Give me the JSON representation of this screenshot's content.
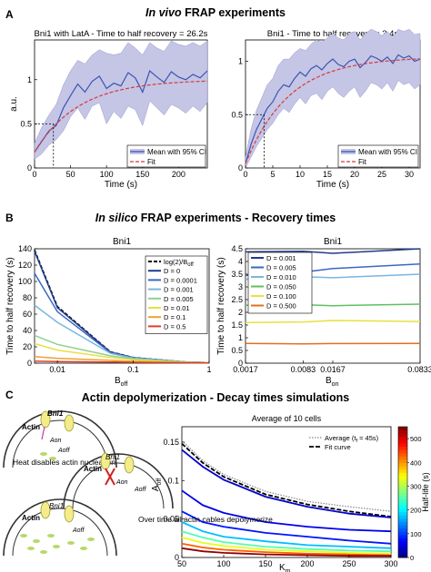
{
  "panels": {
    "A": {
      "letter": "A",
      "title_italic": "In vivo",
      "title_rest": " FRAP experiments"
    },
    "B": {
      "letter": "B",
      "title_italic": "In silico",
      "title_rest": " FRAP experiments - Recovery times"
    },
    "C": {
      "letter": "C",
      "title": "Actin depolymerization - Decay times simulations",
      "schematic": {
        "bni1": "Bni1",
        "actin": "Actin",
        "aon": "Aon",
        "aoff": "Aoff",
        "step1": "Heat disables actin nucleation",
        "step2": "Over time all actin cables depolymerize"
      }
    }
  },
  "colors": {
    "ci_fill": "#c5c5e6",
    "mean_line": "#3a55b0",
    "fit_line": "#d63a3a",
    "D_colors": [
      "#1f3a8a",
      "#3a67c4",
      "#7ab6e0",
      "#8fd08f",
      "#e8e040",
      "#f0a030",
      "#d8402a"
    ],
    "D2_colors": [
      "#1f3a8a",
      "#3a67c4",
      "#7ab6e0",
      "#5fc05f",
      "#e8e040",
      "#e07020"
    ]
  },
  "chart_data": [
    {
      "id": "A1",
      "type": "line",
      "title": "Bni1 with LatA - Time to half recovery = 26.2s",
      "xlabel": "Time (s)",
      "ylabel": "a.u.",
      "xlim": [
        0,
        240
      ],
      "ylim": [
        0,
        1.45
      ],
      "xticks": [
        0,
        50,
        100,
        150,
        200
      ],
      "yticks": [
        0,
        0.5,
        1
      ],
      "half_time": 26.2,
      "legend": [
        "Mean with 95% CI",
        "Fit"
      ],
      "series": [
        {
          "name": "Mean with 95% CI",
          "x": [
            0,
            10,
            20,
            30,
            40,
            50,
            60,
            70,
            80,
            90,
            100,
            110,
            120,
            130,
            140,
            150,
            160,
            170,
            180,
            190,
            200,
            210,
            220,
            230,
            240
          ],
          "values": [
            0.18,
            0.3,
            0.42,
            0.48,
            0.68,
            0.82,
            0.95,
            0.86,
            0.98,
            1.04,
            0.9,
            0.96,
            0.93,
            1.08,
            1.02,
            0.86,
            1.1,
            1.03,
            0.97,
            1.09,
            1.03,
            1.0,
            1.06,
            1.02,
            1.1
          ],
          "lower": [
            0.1,
            0.16,
            0.26,
            0.32,
            0.42,
            0.58,
            0.68,
            0.55,
            0.7,
            0.74,
            0.5,
            0.64,
            0.56,
            0.7,
            0.66,
            0.48,
            0.76,
            0.68,
            0.6,
            0.72,
            0.68,
            0.62,
            0.7,
            0.64,
            0.74
          ],
          "upper": [
            0.28,
            0.46,
            0.6,
            0.72,
            0.94,
            1.1,
            1.22,
            1.18,
            1.28,
            1.34,
            1.3,
            1.28,
            1.3,
            1.42,
            1.36,
            1.28,
            1.42,
            1.36,
            1.32,
            1.44,
            1.4,
            1.38,
            1.42,
            1.38,
            1.44
          ]
        },
        {
          "name": "Fit",
          "fit": "1 - 0.82*exp(-t/38)",
          "plateau": 1.0
        }
      ]
    },
    {
      "id": "A2",
      "type": "line",
      "title": "Bni1 - Time to half recovery = 3.4s",
      "xlabel": "Time (s)",
      "ylabel": "",
      "xlim": [
        0,
        32
      ],
      "ylim": [
        0,
        1.2
      ],
      "xticks": [
        0,
        5,
        10,
        15,
        20,
        25,
        30
      ],
      "yticks": [
        0,
        0.5,
        1
      ],
      "half_time": 3.4,
      "legend": [
        "Mean with 95% CI",
        "Fit"
      ],
      "series": [
        {
          "name": "Mean with 95% CI",
          "x": [
            0,
            1,
            2,
            3,
            4,
            5,
            6,
            7,
            8,
            9,
            10,
            11,
            12,
            13,
            14,
            15,
            16,
            17,
            18,
            19,
            20,
            21,
            22,
            23,
            24,
            25,
            26,
            27,
            28,
            29,
            30,
            31,
            32
          ],
          "values": [
            0.04,
            0.22,
            0.36,
            0.46,
            0.56,
            0.62,
            0.72,
            0.78,
            0.76,
            0.84,
            0.9,
            0.86,
            0.93,
            0.96,
            0.92,
            0.98,
            1.02,
            0.97,
            0.95,
            1.0,
            1.02,
            0.94,
            0.99,
            1.05,
            1.03,
            1.0,
            1.04,
            0.98,
            1.06,
            1.03,
            1.05,
            1.0,
            1.02
          ],
          "lower": [
            0.0,
            0.1,
            0.2,
            0.28,
            0.36,
            0.42,
            0.5,
            0.56,
            0.52,
            0.6,
            0.66,
            0.6,
            0.68,
            0.7,
            0.64,
            0.72,
            0.76,
            0.7,
            0.66,
            0.72,
            0.76,
            0.66,
            0.72,
            0.8,
            0.78,
            0.74,
            0.8,
            0.72,
            0.82,
            0.78,
            0.8,
            0.74,
            0.78
          ],
          "upper": [
            0.1,
            0.36,
            0.54,
            0.66,
            0.78,
            0.84,
            0.96,
            1.02,
            1.02,
            1.08,
            1.12,
            1.1,
            1.16,
            1.2,
            1.18,
            1.22,
            1.26,
            1.22,
            1.2,
            1.26,
            1.28,
            1.2,
            1.26,
            1.3,
            1.28,
            1.24,
            1.28,
            1.22,
            1.3,
            1.28,
            1.3,
            1.25,
            1.26
          ]
        },
        {
          "name": "Fit",
          "fit": "1.04 - 1.04*exp(-t/4.6)",
          "plateau": 1.04
        }
      ]
    },
    {
      "id": "B1",
      "type": "line",
      "title": "Bni1",
      "xlabel": "B_off",
      "ylabel": "Time to half recovery (s)",
      "xscale": "log",
      "xlim": [
        0.005,
        1
      ],
      "ylim": [
        0,
        140
      ],
      "xtick_labels": [
        "0.01",
        "0.1",
        "1"
      ],
      "xticks": [
        0.01,
        0.1,
        1
      ],
      "yticks": [
        0,
        20,
        40,
        60,
        80,
        100,
        120,
        140
      ],
      "x": [
        0.005,
        0.01,
        0.05,
        0.1,
        0.5,
        1
      ],
      "series": [
        {
          "name": "log(2)/B_off",
          "values": [
            138.6,
            69.3,
            13.9,
            6.9,
            1.4,
            0.7
          ]
        },
        {
          "name": "D = 0",
          "values": [
            137,
            68,
            13.6,
            6.8,
            1.4,
            0.7
          ]
        },
        {
          "name": "D = 0.0001",
          "values": [
            110,
            63,
            13,
            6.6,
            1.4,
            0.7
          ]
        },
        {
          "name": "D = 0.001",
          "values": [
            71,
            50,
            12,
            6.2,
            1.3,
            0.7
          ]
        },
        {
          "name": "D = 0.005",
          "values": [
            34,
            23,
            9,
            5.2,
            1.2,
            0.6
          ]
        },
        {
          "name": "D = 0.01",
          "values": [
            24,
            16,
            7,
            4,
            1,
            0.6
          ]
        },
        {
          "name": "D = 0.1",
          "values": [
            8,
            6,
            3.5,
            2.2,
            0.8,
            0.5
          ]
        },
        {
          "name": "D = 0.5",
          "values": [
            2.5,
            2,
            1.4,
            1,
            0.5,
            0.3
          ]
        }
      ]
    },
    {
      "id": "B2",
      "type": "line",
      "title": "Bni1",
      "xlabel": "B_on",
      "ylabel": "Time to half recovery (s)",
      "xlim": [
        0.0017,
        0.0833
      ],
      "ylim": [
        0,
        4.5
      ],
      "xtick_labels": [
        "0.0017",
        "0.0083",
        "0.0167",
        "0.0833"
      ],
      "xticks": [
        0.0017,
        0.0083,
        0.0167,
        0.0833
      ],
      "yticks": [
        0,
        0.5,
        1,
        1.5,
        2,
        2.5,
        3,
        3.5,
        4,
        4.5
      ],
      "x": [
        0.0017,
        0.0083,
        0.0167,
        0.0833
      ],
      "series": [
        {
          "name": "D = 0.001",
          "values": [
            4.38,
            4.4,
            4.32,
            4.5
          ]
        },
        {
          "name": "D = 0.005",
          "values": [
            3.45,
            3.58,
            3.72,
            3.9
          ]
        },
        {
          "name": "D = 0.010",
          "values": [
            3.3,
            3.4,
            3.36,
            3.5
          ]
        },
        {
          "name": "D = 0.050",
          "values": [
            2.28,
            2.3,
            2.26,
            2.32
          ]
        },
        {
          "name": "D = 0.100",
          "values": [
            1.6,
            1.62,
            1.68,
            1.64
          ]
        },
        {
          "name": "D = 0.500",
          "values": [
            0.78,
            0.76,
            0.77,
            0.78
          ]
        }
      ]
    },
    {
      "id": "C1",
      "type": "line",
      "title": "Average of 10 cells",
      "xlabel": "K_m",
      "ylabel": "A_off",
      "xlim": [
        50,
        300
      ],
      "ylim": [
        0,
        0.17
      ],
      "xticks": [
        50,
        100,
        150,
        200,
        250,
        300
      ],
      "yticks": [
        0,
        0.05,
        0.1,
        0.15
      ],
      "x": [
        50,
        75,
        100,
        150,
        200,
        250,
        300
      ],
      "legend": [
        "Average (t_f = 45s)",
        "Fit curve"
      ],
      "series": [
        {
          "name": "Average (t_f = 45s)",
          "values": [
            0.152,
            0.126,
            0.108,
            0.086,
            0.073,
            0.066,
            0.06
          ]
        },
        {
          "name": "Fit curve",
          "values": [
            0.148,
            0.123,
            0.105,
            0.082,
            0.069,
            0.06,
            0.053
          ]
        },
        {
          "values": [
            0.14,
            0.118,
            0.101,
            0.079,
            0.066,
            0.057,
            0.052
          ],
          "half_life": 40
        },
        {
          "values": [
            0.087,
            0.068,
            0.058,
            0.046,
            0.04,
            0.036,
            0.034
          ],
          "half_life": 60
        },
        {
          "values": [
            0.06,
            0.046,
            0.04,
            0.032,
            0.027,
            0.022,
            0.018
          ],
          "half_life": 80
        },
        {
          "values": [
            0.046,
            0.034,
            0.027,
            0.021,
            0.016,
            0.014,
            0.012
          ],
          "half_life": 170
        },
        {
          "values": [
            0.034,
            0.026,
            0.02,
            0.014,
            0.011,
            0.009,
            0.008
          ],
          "half_life": 250
        },
        {
          "values": [
            0.026,
            0.019,
            0.015,
            0.01,
            0.008,
            0.006,
            0.005
          ],
          "half_life": 330
        },
        {
          "values": [
            0.018,
            0.013,
            0.01,
            0.007,
            0.005,
            0.004,
            0.003
          ],
          "half_life": 430
        },
        {
          "values": [
            0.012,
            0.008,
            0.006,
            0.004,
            0.003,
            0.002,
            0.002
          ],
          "half_life": 540
        }
      ],
      "colorbar": {
        "label": "Half-life (s)",
        "range": [
          0,
          550
        ],
        "ticks": [
          0,
          100,
          200,
          300,
          400,
          500
        ],
        "colormap": "jet"
      }
    }
  ]
}
